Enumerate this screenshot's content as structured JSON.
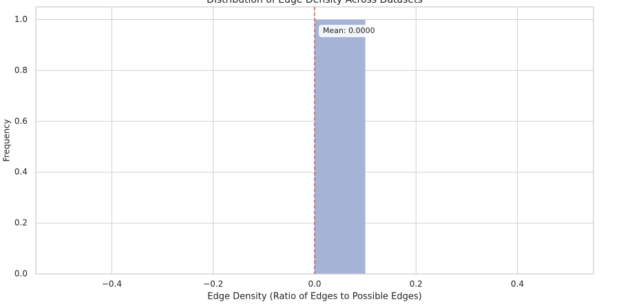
{
  "chart_data": {
    "type": "histogram",
    "title": "Distribution of Edge Density Across Datasets",
    "xlabel": "Edge Density (Ratio of Edges to Possible Edges)",
    "ylabel": "Frequency",
    "bins": [
      0,
      0.1
    ],
    "values": [
      1
    ],
    "color": "#a4b3d6",
    "mean_line": {
      "value": 0,
      "label": "Mean: 0.0000",
      "color": "#d9534f"
    },
    "xlim": [
      -0.55,
      0.55
    ],
    "xticks": [
      {
        "value": -0.4,
        "label": "−0.4"
      },
      {
        "value": -0.2,
        "label": "−0.2"
      },
      {
        "value": 0,
        "label": "0.0"
      },
      0.2,
      0.4
    ],
    "ylim": [
      0,
      1.05
    ],
    "yticks": [
      {
        "value": 0,
        "label": "0.0"
      },
      0.2,
      0.4,
      0.6,
      0.8,
      {
        "value": 1,
        "label": "1.0"
      }
    ],
    "grid": true
  }
}
